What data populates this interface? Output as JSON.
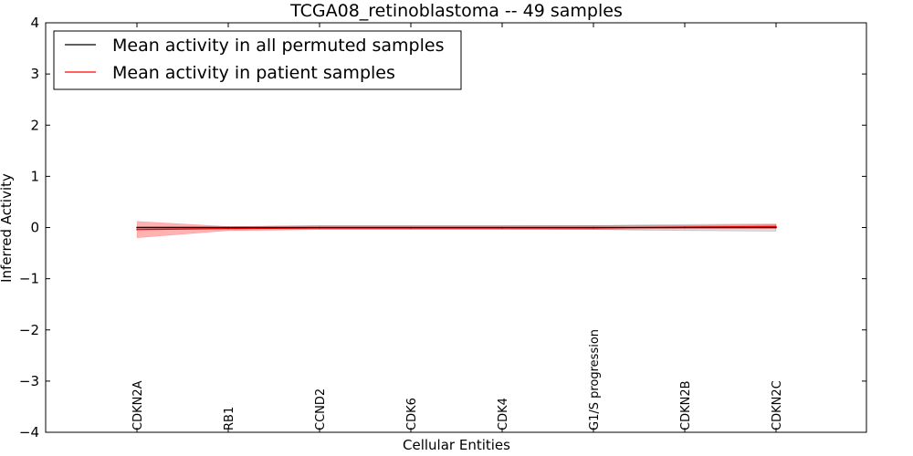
{
  "chart_data": {
    "type": "line",
    "title": "TCGA08_retinoblastoma -- 49 samples",
    "xlabel": "Cellular Entities",
    "ylabel": "Inferred Activity",
    "ylim": [
      -4,
      4
    ],
    "yticks": [
      -4,
      -3,
      -2,
      -1,
      0,
      1,
      2,
      3,
      4
    ],
    "ytick_labels": [
      "−4",
      "−3",
      "−2",
      "−1",
      "0",
      "1",
      "2",
      "3",
      "4"
    ],
    "categories": [
      "CDKN2A",
      "RB1",
      "CCND2",
      "CDK6",
      "CDK4",
      "G1/S progression",
      "CDKN2B",
      "CDKN2C"
    ],
    "series": [
      {
        "name": "Mean activity in all permuted samples",
        "color": "#000000",
        "values": [
          0.0,
          0.0,
          0.0,
          0.0,
          0.0,
          0.0,
          0.0,
          0.0
        ],
        "band_low": [
          -0.02,
          -0.02,
          -0.03,
          -0.03,
          -0.03,
          -0.04,
          -0.06,
          -0.07
        ],
        "band_high": [
          0.02,
          0.02,
          0.03,
          0.03,
          0.03,
          0.04,
          0.06,
          0.07
        ]
      },
      {
        "name": "Mean activity in patient samples",
        "color": "#ff0000",
        "values": [
          -0.04,
          -0.02,
          -0.01,
          -0.01,
          -0.01,
          -0.01,
          0.01,
          0.02
        ],
        "band_low": [
          -0.2,
          -0.06,
          -0.04,
          -0.04,
          -0.04,
          -0.04,
          -0.02,
          -0.02
        ],
        "band_high": [
          0.12,
          0.02,
          0.04,
          0.04,
          0.04,
          0.04,
          0.04,
          0.06
        ]
      }
    ],
    "legend": {
      "location": "top-left"
    }
  }
}
